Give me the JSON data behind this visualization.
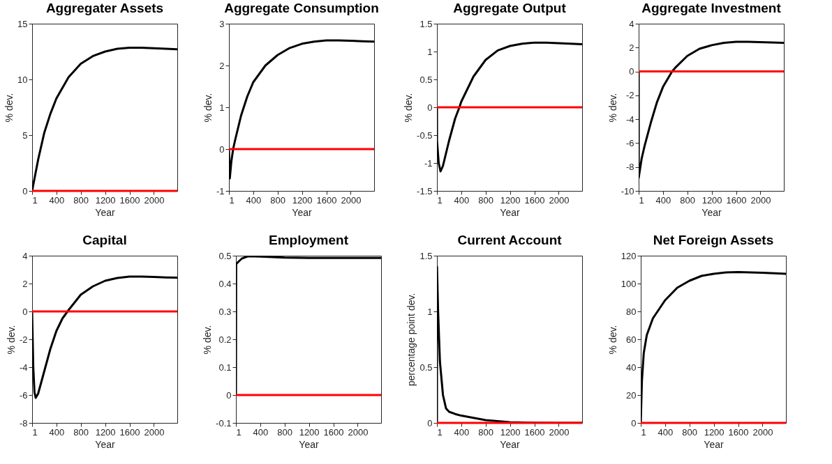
{
  "chart_data": [
    {
      "type": "line",
      "title": "Aggregater Assets",
      "xlabel": "Year",
      "ylabel": "% dev.",
      "xlim": [
        1,
        2385
      ],
      "xticks": [
        1,
        400,
        800,
        1200,
        1600,
        2000
      ],
      "ylim": [
        0,
        15
      ],
      "yticks": [
        0,
        5,
        10,
        15
      ],
      "series": [
        {
          "color": "#000000",
          "x": [
            1,
            100,
            200,
            300,
            400,
            600,
            800,
            1000,
            1200,
            1400,
            1600,
            1800,
            2000,
            2200,
            2385
          ],
          "values": [
            0,
            2.8,
            5.2,
            6.9,
            8.3,
            10.2,
            11.4,
            12.1,
            12.5,
            12.75,
            12.85,
            12.85,
            12.8,
            12.75,
            12.7
          ]
        }
      ],
      "ref_lines": [
        {
          "axis": "y",
          "value": 0,
          "color": "#ff0000"
        }
      ]
    },
    {
      "type": "line",
      "title": "Aggregate Consumption",
      "xlabel": "Year",
      "ylabel": "% dev.",
      "xlim": [
        1,
        2385
      ],
      "xticks": [
        1,
        400,
        800,
        1200,
        1600,
        2000
      ],
      "ylim": [
        -1,
        3
      ],
      "yticks": [
        -1,
        0,
        1,
        2,
        3
      ],
      "series": [
        {
          "color": "#000000",
          "x": [
            1,
            15,
            40,
            70,
            100,
            200,
            300,
            400,
            600,
            800,
            1000,
            1200,
            1400,
            1600,
            1800,
            2000,
            2200,
            2385
          ],
          "values": [
            0,
            -0.7,
            -0.3,
            0,
            0.2,
            0.8,
            1.25,
            1.6,
            2.0,
            2.25,
            2.42,
            2.52,
            2.57,
            2.6,
            2.6,
            2.59,
            2.58,
            2.57
          ]
        }
      ],
      "ref_lines": [
        {
          "axis": "y",
          "value": 0,
          "color": "#ff0000"
        }
      ]
    },
    {
      "type": "line",
      "title": "Aggregate Output",
      "xlabel": "Year",
      "ylabel": "% dev.",
      "xlim": [
        1,
        2385
      ],
      "xticks": [
        1,
        400,
        800,
        1200,
        1600,
        2000
      ],
      "ylim": [
        -1.5,
        1.5
      ],
      "yticks": [
        -1.5,
        -1,
        -0.5,
        0,
        0.5,
        1,
        1.5
      ],
      "series": [
        {
          "color": "#000000",
          "x": [
            1,
            2,
            30,
            60,
            100,
            200,
            300,
            370,
            400,
            600,
            800,
            1000,
            1200,
            1400,
            1600,
            1800,
            2000,
            2200,
            2385
          ],
          "values": [
            0,
            -0.6,
            -1.0,
            -1.15,
            -1.05,
            -0.6,
            -0.2,
            0,
            0.1,
            0.55,
            0.85,
            1.02,
            1.1,
            1.14,
            1.16,
            1.16,
            1.15,
            1.14,
            1.13
          ]
        }
      ],
      "ref_lines": [
        {
          "axis": "y",
          "value": 0,
          "color": "#ff0000"
        }
      ]
    },
    {
      "type": "line",
      "title": "Aggregate Investment",
      "xlabel": "Year",
      "ylabel": "% dev.",
      "xlim": [
        1,
        2385
      ],
      "xticks": [
        1,
        400,
        800,
        1200,
        1600,
        2000
      ],
      "ylim": [
        -10,
        4
      ],
      "yticks": [
        -10,
        -8,
        -6,
        -4,
        -2,
        0,
        2,
        4
      ],
      "series": [
        {
          "color": "#000000",
          "x": [
            1,
            2,
            50,
            100,
            200,
            300,
            400,
            550,
            600,
            800,
            1000,
            1200,
            1400,
            1600,
            1800,
            2000,
            2200,
            2385
          ],
          "values": [
            0,
            -8.9,
            -7.3,
            -6.2,
            -4.3,
            -2.6,
            -1.3,
            0,
            0.3,
            1.3,
            1.9,
            2.2,
            2.4,
            2.48,
            2.48,
            2.45,
            2.42,
            2.4
          ]
        }
      ],
      "ref_lines": [
        {
          "axis": "y",
          "value": 0,
          "color": "#ff0000"
        }
      ]
    },
    {
      "type": "line",
      "title": "Capital",
      "xlabel": "Year",
      "ylabel": "% dev.",
      "xlim": [
        1,
        2385
      ],
      "xticks": [
        1,
        400,
        800,
        1200,
        1600,
        2000
      ],
      "ylim": [
        -8,
        4
      ],
      "yticks": [
        -8,
        -6,
        -4,
        -2,
        0,
        2,
        4
      ],
      "series": [
        {
          "color": "#000000",
          "x": [
            1,
            20,
            40,
            60,
            100,
            200,
            300,
            400,
            500,
            600,
            800,
            1000,
            1200,
            1400,
            1600,
            1800,
            2000,
            2200,
            2385
          ],
          "values": [
            0,
            -4,
            -5.8,
            -6.2,
            -5.9,
            -4.3,
            -2.7,
            -1.4,
            -0.5,
            0.1,
            1.2,
            1.8,
            2.2,
            2.4,
            2.5,
            2.5,
            2.48,
            2.44,
            2.42
          ]
        }
      ],
      "ref_lines": [
        {
          "axis": "y",
          "value": 0,
          "color": "#ff0000"
        }
      ]
    },
    {
      "type": "line",
      "title": "Employment",
      "xlabel": "Year",
      "ylabel": "% dev.",
      "xlim": [
        1,
        2385
      ],
      "xticks": [
        1,
        400,
        800,
        1200,
        1600,
        2000
      ],
      "ylim": [
        -0.1,
        0.5
      ],
      "yticks": [
        -0.1,
        0,
        0.1,
        0.2,
        0.3,
        0.4,
        0.5
      ],
      "series": [
        {
          "color": "#000000",
          "x": [
            1,
            5,
            50,
            100,
            200,
            400,
            800,
            1200,
            2000,
            2385
          ],
          "values": [
            0,
            0.47,
            0.48,
            0.49,
            0.498,
            0.497,
            0.493,
            0.492,
            0.492,
            0.492
          ]
        }
      ],
      "ref_lines": [
        {
          "axis": "y",
          "value": 0,
          "color": "#ff0000"
        }
      ]
    },
    {
      "type": "line",
      "title": "Current Account",
      "xlabel": "Year",
      "ylabel": "percentage point dev.",
      "xlim": [
        1,
        2385
      ],
      "xticks": [
        1,
        400,
        800,
        1200,
        1600,
        2000
      ],
      "ylim": [
        0,
        1.5
      ],
      "yticks": [
        0,
        0.5,
        1,
        1.5
      ],
      "series": [
        {
          "color": "#000000",
          "x": [
            1,
            2,
            20,
            50,
            100,
            150,
            200,
            300,
            400,
            600,
            800,
            1000,
            1200,
            1600,
            2000,
            2385
          ],
          "values": [
            0,
            1.4,
            1.0,
            0.55,
            0.25,
            0.13,
            0.1,
            0.08,
            0.065,
            0.045,
            0.025,
            0.015,
            0.007,
            0.002,
            0,
            0
          ]
        }
      ],
      "ref_lines": [
        {
          "axis": "y",
          "value": 0,
          "color": "#ff0000"
        }
      ]
    },
    {
      "type": "line",
      "title": "Net Foreign Assets",
      "xlabel": "Year",
      "ylabel": "% dev.",
      "xlim": [
        1,
        2385
      ],
      "xticks": [
        1,
        400,
        800,
        1200,
        1600,
        2000
      ],
      "ylim": [
        0,
        120
      ],
      "yticks": [
        0,
        20,
        40,
        60,
        80,
        100,
        120
      ],
      "series": [
        {
          "color": "#000000",
          "x": [
            1,
            20,
            50,
            100,
            200,
            400,
            600,
            800,
            1000,
            1200,
            1400,
            1600,
            1800,
            2000,
            2200,
            2385
          ],
          "values": [
            0,
            30,
            50,
            63,
            75,
            88,
            97,
            102,
            105.5,
            107,
            108,
            108.2,
            108,
            107.8,
            107.4,
            107
          ]
        }
      ],
      "ref_lines": [
        {
          "axis": "y",
          "value": 0,
          "color": "#ff0000"
        }
      ]
    }
  ]
}
